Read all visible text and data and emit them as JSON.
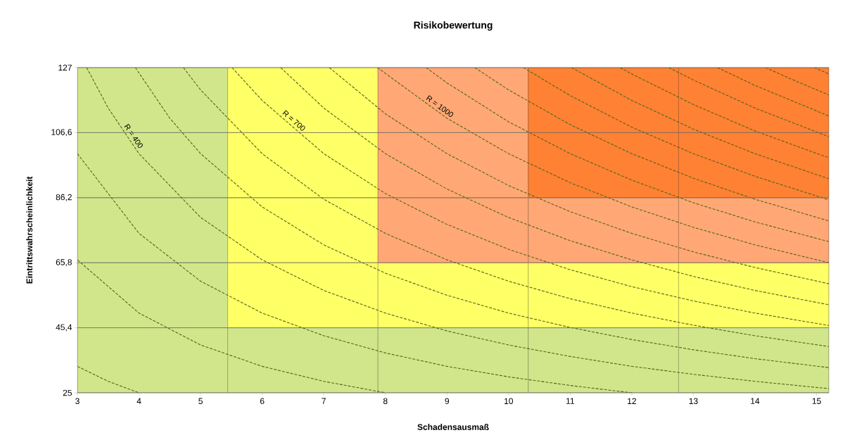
{
  "chart_data": {
    "type": "bar",
    "title": "Risikobewertung",
    "xlabel": "Schadensausmaß",
    "ylabel": "Eintrittswahrscheinlichkeit",
    "xlim": [
      3,
      15.2
    ],
    "ylim": [
      25,
      127
    ],
    "xticks": [
      3,
      4,
      5,
      6,
      7,
      8,
      9,
      10,
      11,
      12,
      13,
      14,
      15
    ],
    "yticks": [
      25,
      {
        "value": 45.4,
        "label": "45,4"
      },
      {
        "value": 65.8,
        "label": "65,8"
      },
      {
        "value": 86.2,
        "label": "86,2"
      },
      {
        "value": 106.6,
        "label": "106,6"
      },
      127
    ],
    "grid": "y",
    "line_style": "dashed",
    "series": [
      {
        "x": [
          4.22,
          6.66,
          9.1,
          11.54,
          13.98
        ],
        "base": [
          25,
          25,
          25,
          25,
          25
        ],
        "values": [
          20.4,
          20.4,
          20.4,
          20.4,
          20.4
        ],
        "colors": [
          "#d1e68a",
          "#d1e68a",
          "#d1e68a",
          "#d1e68a",
          "#d1e68a"
        ]
      },
      {
        "x": [
          4.22,
          6.66,
          9.1,
          11.54,
          13.98
        ],
        "base": [
          45.4,
          45.4,
          45.4,
          45.4,
          45.4
        ],
        "values": [
          20.4,
          20.4,
          20.4,
          20.4,
          20.4
        ],
        "colors": [
          "#d1e68a",
          "#ffff66",
          "#ffff66",
          "#ffff66",
          "#ffff66"
        ]
      },
      {
        "x": [
          4.22,
          6.66,
          9.1,
          11.54,
          13.98
        ],
        "base": [
          65.8,
          65.8,
          65.8,
          65.8,
          65.8
        ],
        "values": [
          20.4,
          20.4,
          20.4,
          20.4,
          20.4
        ],
        "colors": [
          "#d1e68a",
          "#ffff66",
          "#ffa875",
          "#ffa875",
          "#ffa875"
        ]
      },
      {
        "x": [
          4.22,
          6.66,
          9.1,
          11.54,
          13.98
        ],
        "base": [
          86.2,
          86.2,
          86.2,
          86.2,
          86.2
        ],
        "values": [
          20.4,
          20.4,
          20.4,
          20.4,
          20.4
        ],
        "colors": [
          "#d1e68a",
          "#ffff66",
          "#ffa875",
          "#ff8133",
          "#ff8133"
        ]
      },
      {
        "x": [
          4.22,
          6.66,
          9.1,
          11.54,
          13.98
        ],
        "base": [
          106.6,
          106.6,
          106.6,
          106.6,
          106.6
        ],
        "values": [
          20.4,
          20.4,
          20.4,
          20.4,
          20.4
        ],
        "colors": [
          "#d1e68a",
          "#ffff66",
          "#ffa875",
          "#ff8133",
          "#ff8133"
        ]
      },
      {
        "type": "line",
        "color": "#55641c",
        "x": [
          3,
          3.5,
          4
        ],
        "values": [
          33.3,
          28.6,
          25
        ]
      },
      {
        "type": "line",
        "color": "#55641c",
        "x": [
          3,
          4,
          5,
          6,
          7,
          8
        ],
        "values": [
          66.7,
          50,
          40,
          33.3,
          28.6,
          25
        ]
      },
      {
        "type": "line",
        "color": "#55641c",
        "x": [
          3,
          4,
          5,
          6,
          7,
          8,
          9,
          10,
          11,
          12
        ],
        "values": [
          100,
          75,
          60,
          50,
          42.9,
          37.5,
          33.3,
          30,
          27.3,
          25
        ]
      },
      {
        "type": "line",
        "color": "#55641c",
        "name": "R = 400",
        "x": [
          3.15,
          3.5,
          4,
          5,
          6,
          7,
          8,
          9,
          10,
          11,
          12,
          13,
          14,
          15.2
        ],
        "values": [
          127,
          114.3,
          100,
          80,
          66.7,
          57.1,
          50,
          44.4,
          40,
          36.4,
          33.3,
          30.8,
          28.6,
          26.3
        ]
      },
      {
        "type": "line",
        "color": "#55641c",
        "x": [
          3.94,
          4.5,
          5,
          6,
          7,
          8,
          9,
          10,
          11,
          12,
          13,
          14,
          15.2
        ],
        "values": [
          127,
          111.1,
          100,
          83.3,
          71.4,
          62.5,
          55.6,
          50,
          45.5,
          41.7,
          38.5,
          35.7,
          32.9
        ]
      },
      {
        "type": "line",
        "color": "#55641c",
        "x": [
          4.72,
          5,
          6,
          7,
          8,
          9,
          10,
          11,
          12,
          13,
          14,
          15.2
        ],
        "values": [
          127,
          120,
          100,
          85.7,
          75,
          66.7,
          60,
          54.5,
          50,
          46.2,
          42.9,
          39.5
        ]
      },
      {
        "type": "line",
        "color": "#55641c",
        "name": "R = 700",
        "x": [
          5.51,
          6,
          7,
          8,
          9,
          10,
          11,
          12,
          13,
          14,
          15.2
        ],
        "values": [
          127,
          116.7,
          100,
          87.5,
          77.8,
          70,
          63.6,
          58.3,
          53.8,
          50,
          46.1
        ]
      },
      {
        "type": "line",
        "color": "#55641c",
        "x": [
          6.3,
          7,
          8,
          9,
          10,
          11,
          12,
          13,
          14,
          15.2
        ],
        "values": [
          127,
          114.3,
          100,
          88.9,
          80,
          72.7,
          66.7,
          61.5,
          57.1,
          52.6
        ]
      },
      {
        "type": "line",
        "color": "#55641c",
        "x": [
          7.09,
          8,
          9,
          10,
          11,
          12,
          13,
          14,
          15.2
        ],
        "values": [
          127,
          112.5,
          100,
          90,
          81.8,
          75,
          69.2,
          64.3,
          59.2
        ]
      },
      {
        "type": "line",
        "color": "#55641c",
        "name": "R = 1000",
        "x": [
          7.87,
          9,
          10,
          11,
          12,
          13,
          14,
          15.2
        ],
        "values": [
          127,
          111.1,
          100,
          90.9,
          83.3,
          76.9,
          71.4,
          65.8
        ]
      },
      {
        "type": "line",
        "color": "#55641c",
        "x": [
          8.66,
          9,
          10,
          11,
          12,
          13,
          14,
          15.2
        ],
        "values": [
          127,
          122.2,
          110,
          100,
          91.7,
          84.6,
          78.6,
          72.4
        ]
      },
      {
        "type": "line",
        "color": "#55641c",
        "x": [
          9.45,
          10,
          11,
          12,
          13,
          14,
          15.2
        ],
        "values": [
          127,
          120,
          109.1,
          100,
          92.3,
          85.7,
          78.9
        ]
      },
      {
        "type": "line",
        "color": "#55641c",
        "x": [
          10.24,
          11,
          12,
          13,
          14,
          15.2
        ],
        "values": [
          127,
          118.2,
          108.3,
          100,
          92.9,
          85.5
        ]
      },
      {
        "type": "line",
        "color": "#55641c",
        "x": [
          11.02,
          12,
          13,
          14,
          15.2
        ],
        "values": [
          127,
          116.7,
          107.7,
          100,
          92.1
        ]
      },
      {
        "type": "line",
        "color": "#55641c",
        "x": [
          11.81,
          12,
          13,
          14,
          15.2
        ],
        "values": [
          127,
          125,
          115.4,
          107.1,
          98.7
        ]
      },
      {
        "type": "line",
        "color": "#55641c",
        "x": [
          12.6,
          13,
          14,
          15.2
        ],
        "values": [
          127,
          123.1,
          114.3,
          105.3
        ]
      },
      {
        "type": "line",
        "color": "#55641c",
        "x": [
          13.39,
          14,
          15.2
        ],
        "values": [
          127,
          121.4,
          111.8
        ]
      },
      {
        "type": "line",
        "color": "#55641c",
        "x": [
          14.17,
          14.6,
          15.2
        ],
        "values": [
          127,
          123.3,
          118.4
        ]
      },
      {
        "type": "line",
        "color": "#55641c",
        "x": [
          14.96,
          15.2
        ],
        "values": [
          127,
          125
        ]
      }
    ]
  }
}
